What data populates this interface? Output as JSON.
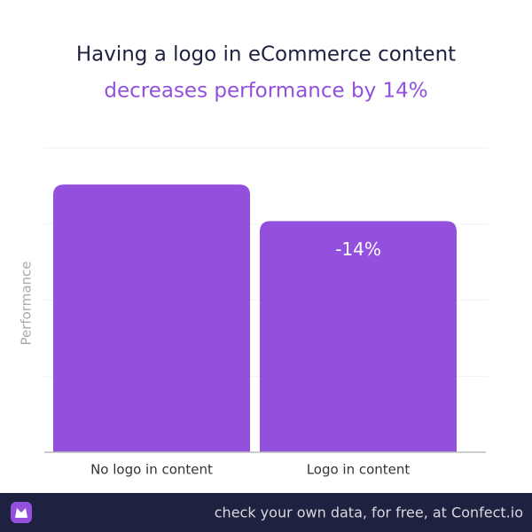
{
  "chart_data": {
    "type": "bar",
    "title": "Having a logo in eCommerce content",
    "subtitle": "decreases performance by 14%",
    "y_label": "Performance",
    "categories": [
      "No logo in content",
      "Logo in content"
    ],
    "values": [
      88,
      76
    ],
    "color": "#9350dd",
    "annotation": "-14%",
    "ylim": [
      0,
      100
    ],
    "yticks": [
      0,
      25,
      50,
      75,
      100
    ],
    "grid": true,
    "footer": "check your own data, for free, at Confect.io"
  }
}
